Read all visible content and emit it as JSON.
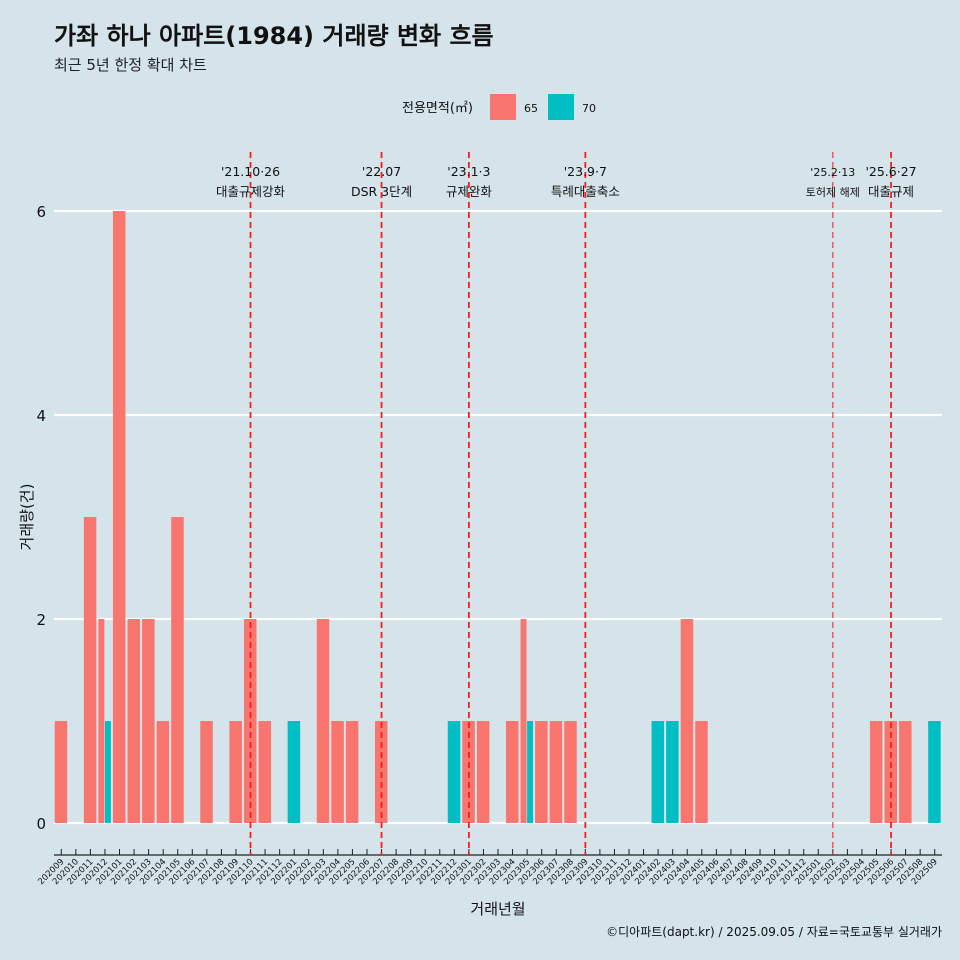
{
  "chart_data": {
    "type": "bar",
    "title": "가좌 하나 아파트(1984) 거래량 변화 흐름",
    "subtitle": "최근 5년 한정 확대 차트",
    "xlabel": "거래년월",
    "ylabel": "거래량(건)",
    "caption": "©디아파트(dapt.kr) / 2025.09.05 / 자료=국토교통부 실거래가",
    "legend": {
      "title": "전용면적(㎡)",
      "placement": "top",
      "entries": [
        {
          "label": "65",
          "color": "#f8766d"
        },
        {
          "label": "70",
          "color": "#00bfc4"
        }
      ]
    },
    "ylim": [
      0,
      6
    ],
    "yticks": [
      0,
      2,
      4,
      6
    ],
    "categories": [
      "202009",
      "202010",
      "202011",
      "202012",
      "202101",
      "202102",
      "202103",
      "202104",
      "202105",
      "202106",
      "202107",
      "202108",
      "202109",
      "202110",
      "202111",
      "202112",
      "202201",
      "202202",
      "202203",
      "202204",
      "202205",
      "202206",
      "202207",
      "202208",
      "202209",
      "202210",
      "202211",
      "202212",
      "202301",
      "202302",
      "202303",
      "202304",
      "202305",
      "202306",
      "202307",
      "202308",
      "202309",
      "202310",
      "202311",
      "202312",
      "202401",
      "202402",
      "202403",
      "202404",
      "202405",
      "202406",
      "202407",
      "202408",
      "202409",
      "202410",
      "202411",
      "202412",
      "202501",
      "202502",
      "202503",
      "202504",
      "202505",
      "202506",
      "202507",
      "202508",
      "202509"
    ],
    "series": [
      {
        "name": "65",
        "color": "#f8766d",
        "values": [
          1,
          0,
          3,
          2,
          6,
          2,
          2,
          1,
          3,
          0,
          1,
          0,
          1,
          2,
          1,
          0,
          0,
          0,
          2,
          1,
          1,
          0,
          1,
          0,
          0,
          0,
          0,
          0,
          1,
          1,
          0,
          1,
          2,
          1,
          1,
          1,
          0,
          0,
          0,
          0,
          0,
          0,
          0,
          2,
          1,
          0,
          0,
          0,
          0,
          0,
          0,
          0,
          0,
          0,
          0,
          0,
          1,
          1,
          1,
          0,
          0
        ]
      },
      {
        "name": "70",
        "color": "#00bfc4",
        "values": [
          0,
          0,
          0,
          1,
          0,
          0,
          0,
          0,
          0,
          0,
          0,
          0,
          0,
          0,
          0,
          0,
          1,
          0,
          0,
          0,
          0,
          0,
          0,
          0,
          0,
          0,
          0,
          1,
          0,
          0,
          0,
          0,
          1,
          0,
          0,
          0,
          0,
          0,
          0,
          0,
          0,
          1,
          1,
          0,
          0,
          0,
          0,
          0,
          0,
          0,
          0,
          0,
          0,
          0,
          0,
          0,
          0,
          0,
          0,
          0,
          1
        ]
      }
    ],
    "annotations": [
      {
        "x": "202110",
        "date": "'21.10·26",
        "label": "대출규제강화"
      },
      {
        "x": "202207",
        "date": "'22.07",
        "label": "DSR 3단계"
      },
      {
        "x": "202301",
        "date": "'23.1·3",
        "label": "규제완화"
      },
      {
        "x": "202309",
        "date": "'23.9·7",
        "label": "특례대출축소"
      },
      {
        "x": "202502",
        "date": "'25.2·13",
        "label": "토허제 해제"
      },
      {
        "x": "202506",
        "date": "'25.6·27",
        "label": "대출규제"
      }
    ],
    "grid": true
  }
}
